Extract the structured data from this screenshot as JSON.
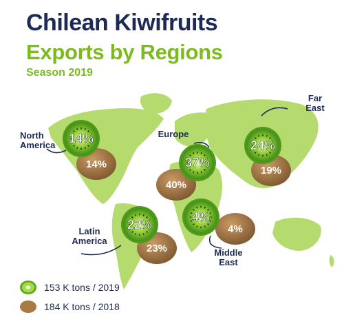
{
  "header": {
    "title_line1": "Chilean Kiwifruits",
    "title_line2": "Exports by Regions",
    "season": "Season 2019"
  },
  "legend": [
    {
      "label": "153 K tons / 2019",
      "icon": "green-kiwi-slice-icon"
    },
    {
      "label": "184 K tons / 2018",
      "icon": "brown-kiwi-whole-icon"
    }
  ],
  "colors": {
    "navy": "#1d2a54",
    "green": "#7cbb1f",
    "map": "#b5da6e",
    "kiwi_green": "#58a91f",
    "kiwi_brown": "#a97a45"
  },
  "chart_data": {
    "type": "table",
    "title": "Chilean Kiwifruits Exports by Regions",
    "subtitle": "Season 2019",
    "series": [
      {
        "name": "153 K tons / 2019",
        "values": [
          14,
          37,
          24,
          22,
          4
        ]
      },
      {
        "name": "184 K tons / 2018",
        "values": [
          14,
          40,
          19,
          23,
          4
        ]
      }
    ],
    "categories": [
      "North America",
      "Europe",
      "Far East",
      "Latin America",
      "Middle East"
    ],
    "unit": "%",
    "region_labels": [
      [
        "North",
        "America"
      ],
      [
        "Europe"
      ],
      [
        "Far",
        "East"
      ],
      [
        "Latin",
        "America"
      ],
      [
        "Middle",
        "East"
      ]
    ]
  }
}
